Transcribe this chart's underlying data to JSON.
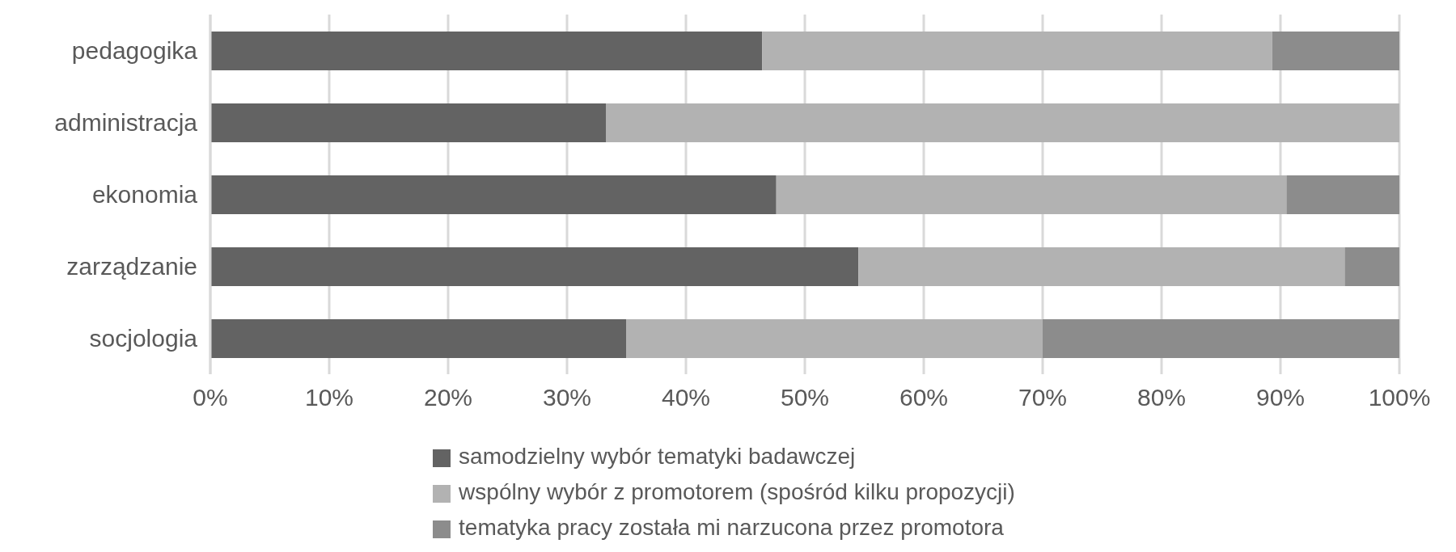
{
  "chart_data": {
    "type": "bar",
    "orientation": "horizontal",
    "stacked": true,
    "categories": [
      "pedagogika",
      "administracja",
      "ekonomia",
      "zarządzanie",
      "socjologia"
    ],
    "series": [
      {
        "name": "samodzielny wybór tematyki badawczej",
        "color": "#636363",
        "values": [
          46.4,
          33.3,
          47.6,
          54.5,
          35.0
        ]
      },
      {
        "name": "wspólny wybór z promotorem (spośród kilku propozycji)",
        "color": "#b2b2b2",
        "values": [
          42.9,
          66.7,
          42.9,
          40.9,
          35.0
        ]
      },
      {
        "name": "tematyka pracy została mi narzucona przez promotora",
        "color": "#8c8c8c",
        "values": [
          10.7,
          0,
          9.5,
          4.6,
          30.0
        ]
      }
    ],
    "xlim": [
      0,
      100
    ],
    "xticks": [
      {
        "value": 0,
        "label": "0%"
      },
      {
        "value": 10,
        "label": "10%"
      },
      {
        "value": 20,
        "label": "20%"
      },
      {
        "value": 30,
        "label": "30%"
      },
      {
        "value": 40,
        "label": "40%"
      },
      {
        "value": 50,
        "label": "50%"
      },
      {
        "value": 60,
        "label": "60%"
      },
      {
        "value": 70,
        "label": "70%"
      },
      {
        "value": 80,
        "label": "80%"
      },
      {
        "value": 90,
        "label": "90%"
      },
      {
        "value": 100,
        "label": "100%"
      }
    ],
    "grid": "x",
    "legend": "bottom"
  }
}
